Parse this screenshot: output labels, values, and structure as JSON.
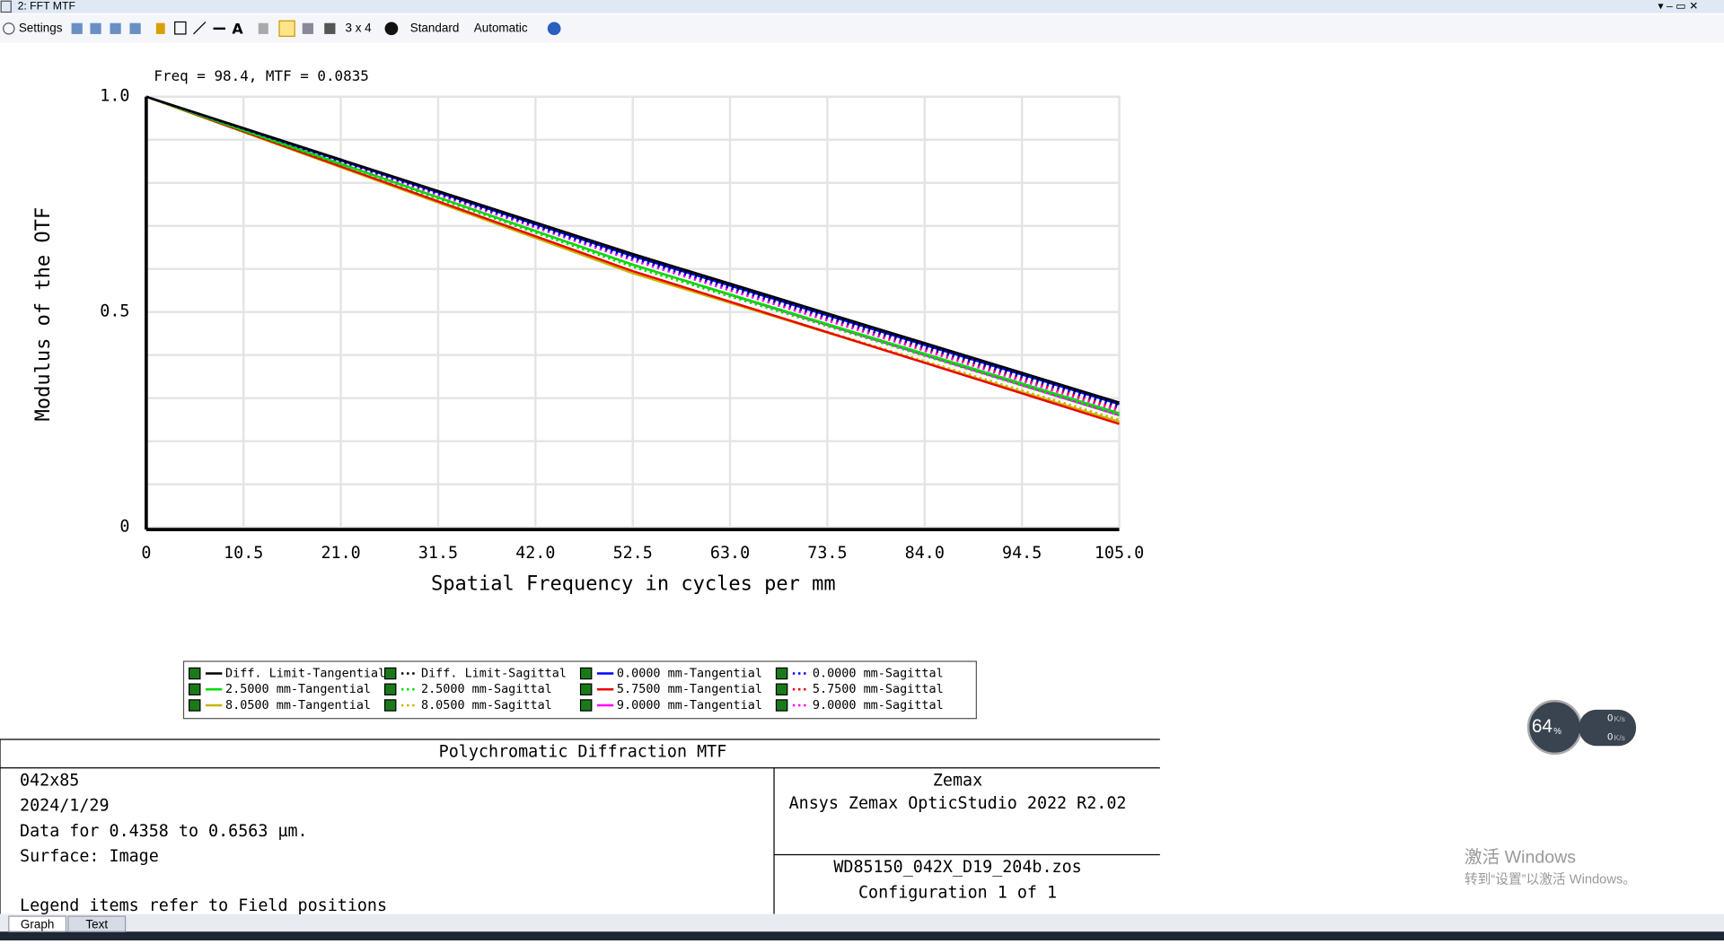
{
  "window": {
    "title": "2: FFT MTF"
  },
  "toolbar": {
    "settings": "Settings",
    "layout": "3 x 4",
    "style": "Standard",
    "scale": "Automatic"
  },
  "chart_data": {
    "type": "line",
    "annotation": "Freq = 98.4, MTF = 0.0835",
    "xlabel": "Spatial Frequency in cycles per mm",
    "ylabel": "Modulus of the OTF",
    "x": [
      0,
      52.5,
      105
    ],
    "xlim": [
      0,
      105
    ],
    "ylim": [
      0,
      1
    ],
    "xticks": [
      0,
      10.5,
      {
        "value": 21,
        "label": "21.0"
      },
      31.5,
      {
        "value": 42,
        "label": "42.0"
      },
      52.5,
      {
        "value": 63,
        "label": "63.0"
      },
      73.5,
      {
        "value": 84,
        "label": "84.0"
      },
      94.5,
      {
        "value": 105,
        "label": "105.0"
      }
    ],
    "yticks": [
      0,
      0.5,
      {
        "value": 1,
        "label": "1.0"
      }
    ],
    "yminorticks": [
      0.1,
      0.2,
      0.3,
      0.4,
      0.6,
      0.7,
      0.8,
      0.9
    ],
    "grid": true,
    "series": [
      {
        "name": "Diff. Limit-Tangential",
        "color": "#000000",
        "dash": "solid",
        "values": [
          1,
          0.635,
          0.29
        ]
      },
      {
        "name": "Diff. Limit-Sagittal",
        "color": "#000000",
        "dash": "dotted",
        "values": [
          1,
          0.63,
          0.285
        ]
      },
      {
        "name": "0.0000 mm-Tangential",
        "color": "#0000ff",
        "dash": "solid",
        "values": [
          1,
          0.63,
          0.286
        ]
      },
      {
        "name": "0.0000 mm-Sagittal",
        "color": "#0000ff",
        "dash": "dotted",
        "values": [
          1,
          0.625,
          0.28
        ]
      },
      {
        "name": "2.5000 mm-Tangential",
        "color": "#00dd00",
        "dash": "solid",
        "values": [
          1,
          0.61,
          0.265
        ]
      },
      {
        "name": "2.5000 mm-Sagittal",
        "color": "#00dd00",
        "dash": "dotted",
        "values": [
          1,
          0.605,
          0.26
        ]
      },
      {
        "name": "5.7500 mm-Tangential",
        "color": "#ee0000",
        "dash": "solid",
        "values": [
          1,
          0.595,
          0.24
        ]
      },
      {
        "name": "5.7500 mm-Sagittal",
        "color": "#ee0000",
        "dash": "dotted",
        "values": [
          1,
          0.625,
          0.275
        ]
      },
      {
        "name": "8.0500 mm-Tangential",
        "color": "#c8b400",
        "dash": "solid",
        "values": [
          1,
          0.59,
          0.245
        ]
      },
      {
        "name": "8.0500 mm-Sagittal",
        "color": "#c8b400",
        "dash": "dotted",
        "values": [
          1,
          0.59,
          0.25
        ]
      },
      {
        "name": "9.0000 mm-Tangential",
        "color": "#ff00ff",
        "dash": "solid",
        "values": [
          1,
          0.61,
          0.26
        ]
      },
      {
        "name": "9.0000 mm-Sagittal",
        "color": "#ff00ff",
        "dash": "dotted",
        "values": [
          1,
          0.62,
          0.27
        ]
      }
    ]
  },
  "info": {
    "title": "Polychromatic Diffraction MTF",
    "left": [
      "042x85",
      "2024/1/29",
      "Data for 0.4358 to 0.6563 µm.",
      "Surface: Image",
      "Legend items refer to Field positions"
    ],
    "right_top": [
      "Zemax",
      "Ansys Zemax OpticStudio 2022 R2.02"
    ],
    "right_bottom": [
      "WD85150_042X_D19_204b.zos",
      "Configuration 1 of 1"
    ]
  },
  "tabs": [
    "Graph",
    "Text"
  ],
  "watermark": [
    "激活 Windows",
    "转到“设置”以激活 Windows。"
  ],
  "widget": {
    "percent": "64",
    "unit": "%",
    "up": "0",
    "up_unit": "K/s",
    "down": "0",
    "down_unit": "K/s"
  }
}
